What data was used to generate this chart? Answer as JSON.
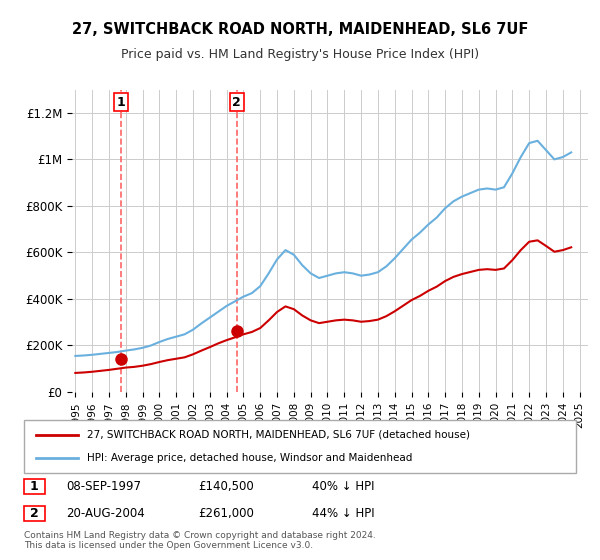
{
  "title": "27, SWITCHBACK ROAD NORTH, MAIDENHEAD, SL6 7UF",
  "subtitle": "Price paid vs. HM Land Registry's House Price Index (HPI)",
  "legend_line1": "27, SWITCHBACK ROAD NORTH, MAIDENHEAD, SL6 7UF (detached house)",
  "legend_line2": "HPI: Average price, detached house, Windsor and Maidenhead",
  "transaction1_label": "1",
  "transaction1_date": "08-SEP-1997",
  "transaction1_price": "£140,500",
  "transaction1_hpi": "40% ↓ HPI",
  "transaction2_label": "2",
  "transaction2_date": "20-AUG-2004",
  "transaction2_price": "£261,000",
  "transaction2_hpi": "44% ↓ HPI",
  "footer": "Contains HM Land Registry data © Crown copyright and database right 2024.\nThis data is licensed under the Open Government Licence v3.0.",
  "hpi_color": "#6ab0de",
  "price_color": "#cc0000",
  "dashed_color": "#ff6666",
  "background_color": "#ffffff",
  "grid_color": "#cccccc",
  "ylim": [
    0,
    1300000
  ],
  "yticks": [
    0,
    200000,
    400000,
    600000,
    800000,
    1000000,
    1200000
  ],
  "ytick_labels": [
    "£0",
    "£200K",
    "£400K",
    "£600K",
    "£800K",
    "£1M",
    "£1.2M"
  ],
  "transaction1_x": 1997.7,
  "transaction1_y": 140500,
  "transaction2_x": 2004.6,
  "transaction2_y": 261000,
  "hpi_years": [
    1995,
    1995.5,
    1996,
    1996.5,
    1997,
    1997.5,
    1998,
    1998.5,
    1999,
    1999.5,
    2000,
    2000.5,
    2001,
    2001.5,
    2002,
    2002.5,
    2003,
    2003.5,
    2004,
    2004.5,
    2005,
    2005.5,
    2006,
    2006.5,
    2007,
    2007.5,
    2008,
    2008.5,
    2009,
    2009.5,
    2010,
    2010.5,
    2011,
    2011.5,
    2012,
    2012.5,
    2013,
    2013.5,
    2014,
    2014.5,
    2015,
    2015.5,
    2016,
    2016.5,
    2017,
    2017.5,
    2018,
    2018.5,
    2019,
    2019.5,
    2020,
    2020.5,
    2021,
    2021.5,
    2022,
    2022.5,
    2023,
    2023.5,
    2024,
    2024.5
  ],
  "hpi_values": [
    155000,
    157000,
    160000,
    164000,
    168000,
    172000,
    178000,
    183000,
    190000,
    200000,
    215000,
    228000,
    238000,
    248000,
    268000,
    295000,
    320000,
    345000,
    370000,
    390000,
    410000,
    425000,
    455000,
    510000,
    570000,
    610000,
    590000,
    545000,
    510000,
    490000,
    500000,
    510000,
    515000,
    510000,
    500000,
    505000,
    515000,
    540000,
    575000,
    615000,
    655000,
    685000,
    720000,
    750000,
    790000,
    820000,
    840000,
    855000,
    870000,
    875000,
    870000,
    880000,
    940000,
    1010000,
    1070000,
    1080000,
    1040000,
    1000000,
    1010000,
    1030000
  ],
  "price_years": [
    1995,
    1995.5,
    1996,
    1996.5,
    1997,
    1997.5,
    1998,
    1998.5,
    1999,
    1999.5,
    2000,
    2000.5,
    2001,
    2001.5,
    2002,
    2002.5,
    2003,
    2003.5,
    2004,
    2004.5,
    2005,
    2005.5,
    2006,
    2006.5,
    2007,
    2007.5,
    2008,
    2008.5,
    2009,
    2009.5,
    2010,
    2010.5,
    2011,
    2011.5,
    2012,
    2012.5,
    2013,
    2013.5,
    2014,
    2014.5,
    2015,
    2015.5,
    2016,
    2016.5,
    2017,
    2017.5,
    2018,
    2018.5,
    2019,
    2019.5,
    2020,
    2020.5,
    2021,
    2021.5,
    2022,
    2022.5,
    2023,
    2023.5,
    2024,
    2024.5
  ],
  "price_values": [
    82000,
    84000,
    87000,
    91000,
    95000,
    100000,
    105000,
    108000,
    113000,
    120000,
    129000,
    137000,
    143000,
    149000,
    162000,
    178000,
    193000,
    209000,
    223000,
    235000,
    248000,
    258000,
    275000,
    308000,
    344000,
    368000,
    356000,
    329000,
    308000,
    296000,
    302000,
    308000,
    311000,
    308000,
    302000,
    305000,
    311000,
    326000,
    347000,
    371000,
    395000,
    413000,
    435000,
    453000,
    477000,
    495000,
    507000,
    516000,
    525000,
    528000,
    525000,
    531000,
    567000,
    610000,
    646000,
    652000,
    628000,
    603000,
    610000,
    622000
  ],
  "xlim_left": 1994.8,
  "xlim_right": 2025.5,
  "xticks": [
    1995,
    1996,
    1997,
    1998,
    1999,
    2000,
    2001,
    2002,
    2003,
    2004,
    2005,
    2006,
    2007,
    2008,
    2009,
    2010,
    2011,
    2012,
    2013,
    2014,
    2015,
    2016,
    2017,
    2018,
    2019,
    2020,
    2021,
    2022,
    2023,
    2024,
    2025
  ]
}
